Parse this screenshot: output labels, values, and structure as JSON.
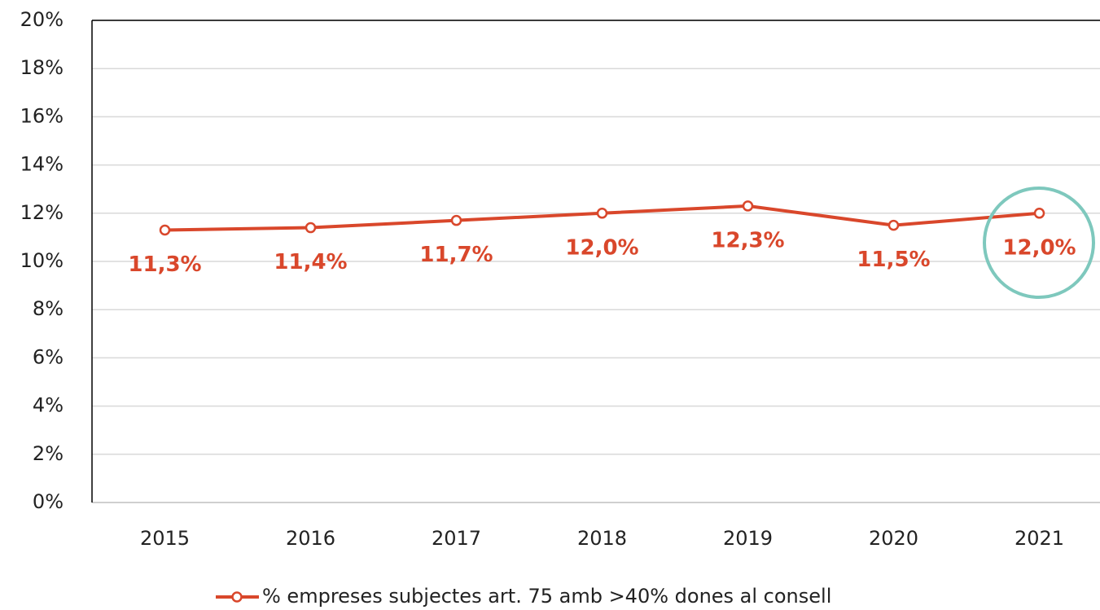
{
  "chart_data": {
    "type": "line",
    "categories": [
      "2015",
      "2016",
      "2017",
      "2018",
      "2019",
      "2020",
      "2021"
    ],
    "series": [
      {
        "name": "% empreses subjectes art. 75 amb >40% dones al consell",
        "color": "#d9472b",
        "values": [
          11.3,
          11.4,
          11.7,
          12.0,
          12.3,
          11.5,
          12.0
        ],
        "value_labels": [
          "11,3%",
          "11,4%",
          "11,7%",
          "12,0%",
          "12,3%",
          "11,5%",
          "12,0%"
        ]
      }
    ],
    "ylim": [
      0,
      20
    ],
    "yticks": [
      {
        "value": 0,
        "label": "0%"
      },
      {
        "value": 2,
        "label": "2%"
      },
      {
        "value": 4,
        "label": "4%"
      },
      {
        "value": 6,
        "label": "6%"
      },
      {
        "value": 8,
        "label": "8%"
      },
      {
        "value": 10,
        "label": "10%"
      },
      {
        "value": 12,
        "label": "12%"
      },
      {
        "value": 14,
        "label": "14%"
      },
      {
        "value": 16,
        "label": "16%"
      },
      {
        "value": 18,
        "label": "18%"
      },
      {
        "value": 20,
        "label": "20%"
      }
    ],
    "grid": true,
    "legend": "bottom"
  }
}
